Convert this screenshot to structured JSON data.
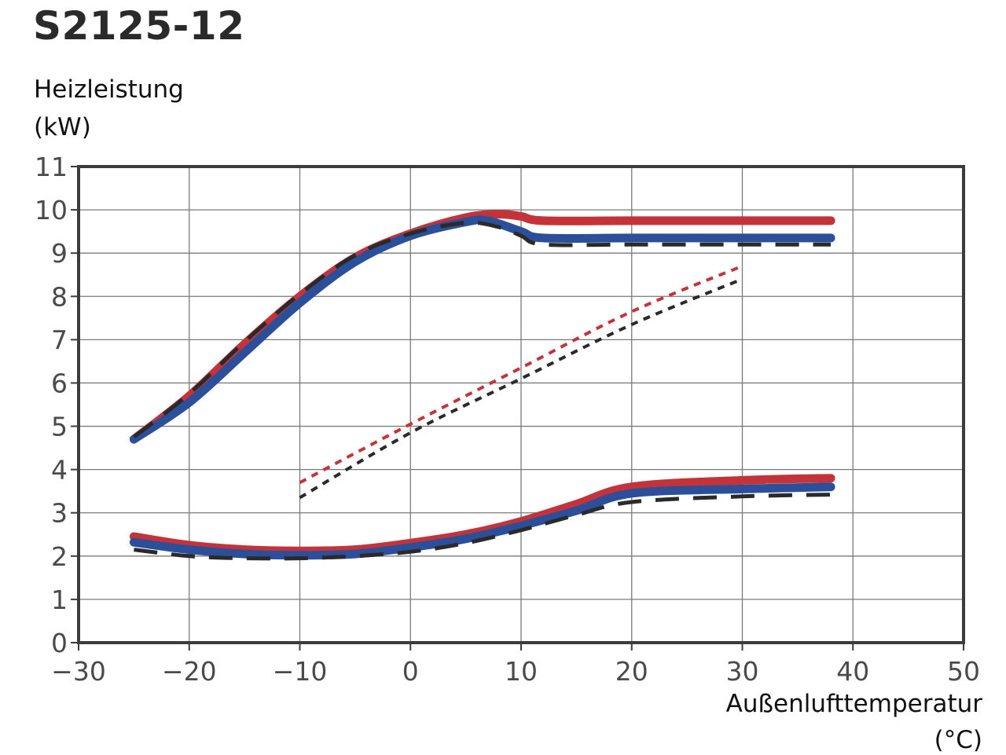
{
  "chart_data": {
    "type": "line",
    "title": "S2125-12",
    "ylabel": "Heizleistung",
    "ylabel_unit": "(kW)",
    "xlabel": "Außenlufttemperatur",
    "xlabel_unit": "(°C)",
    "xlim": [
      -30,
      50
    ],
    "ylim": [
      0,
      11
    ],
    "xticks": [
      -30,
      -20,
      -10,
      0,
      10,
      20,
      30,
      40,
      50
    ],
    "yticks": [
      0,
      1,
      2,
      3,
      4,
      5,
      6,
      7,
      8,
      9,
      10,
      11
    ],
    "grid": true,
    "legend": "none",
    "series": [
      {
        "group": "max",
        "color": "#c5333a",
        "style": "solid",
        "points": [
          [
            -25,
            4.7
          ],
          [
            -20,
            5.7
          ],
          [
            -15,
            6.9
          ],
          [
            -10,
            8.0
          ],
          [
            -5,
            8.9
          ],
          [
            0,
            9.45
          ],
          [
            5,
            9.82
          ],
          [
            8,
            9.9
          ],
          [
            10,
            9.85
          ],
          [
            12,
            9.75
          ],
          [
            20,
            9.75
          ],
          [
            30,
            9.75
          ],
          [
            38,
            9.75
          ]
        ]
      },
      {
        "group": "max",
        "color": "#2c4f9a",
        "style": "solid",
        "points": [
          [
            -25,
            4.7
          ],
          [
            -20,
            5.55
          ],
          [
            -15,
            6.7
          ],
          [
            -10,
            7.85
          ],
          [
            -5,
            8.8
          ],
          [
            0,
            9.4
          ],
          [
            5,
            9.72
          ],
          [
            7,
            9.75
          ],
          [
            10,
            9.5
          ],
          [
            12,
            9.35
          ],
          [
            20,
            9.35
          ],
          [
            30,
            9.35
          ],
          [
            38,
            9.35
          ]
        ]
      },
      {
        "group": "max",
        "color": "#2a2a2a",
        "style": "dashed",
        "points": [
          [
            -25,
            4.75
          ],
          [
            -20,
            5.75
          ],
          [
            -15,
            6.95
          ],
          [
            -10,
            8.05
          ],
          [
            -5,
            8.95
          ],
          [
            0,
            9.45
          ],
          [
            5,
            9.7
          ],
          [
            8,
            9.6
          ],
          [
            10,
            9.4
          ],
          [
            12,
            9.2
          ],
          [
            20,
            9.2
          ],
          [
            30,
            9.2
          ],
          [
            38,
            9.2
          ]
        ]
      },
      {
        "group": "min",
        "color": "#c5333a",
        "style": "solid",
        "points": [
          [
            -25,
            2.45
          ],
          [
            -20,
            2.25
          ],
          [
            -15,
            2.15
          ],
          [
            -10,
            2.12
          ],
          [
            -5,
            2.15
          ],
          [
            0,
            2.3
          ],
          [
            5,
            2.5
          ],
          [
            10,
            2.8
          ],
          [
            15,
            3.2
          ],
          [
            20,
            3.6
          ],
          [
            30,
            3.75
          ],
          [
            38,
            3.8
          ]
        ]
      },
      {
        "group": "min",
        "color": "#2c4f9a",
        "style": "solid",
        "points": [
          [
            -25,
            2.32
          ],
          [
            -20,
            2.15
          ],
          [
            -15,
            2.05
          ],
          [
            -10,
            2.02
          ],
          [
            -5,
            2.05
          ],
          [
            0,
            2.2
          ],
          [
            5,
            2.4
          ],
          [
            10,
            2.7
          ],
          [
            15,
            3.05
          ],
          [
            20,
            3.45
          ],
          [
            30,
            3.55
          ],
          [
            38,
            3.6
          ]
        ]
      },
      {
        "group": "min",
        "color": "#2a2a2a",
        "style": "dashed",
        "points": [
          [
            -25,
            2.15
          ],
          [
            -20,
            2.0
          ],
          [
            -15,
            1.95
          ],
          [
            -10,
            1.95
          ],
          [
            -5,
            2.0
          ],
          [
            0,
            2.1
          ],
          [
            5,
            2.3
          ],
          [
            10,
            2.6
          ],
          [
            15,
            2.95
          ],
          [
            20,
            3.25
          ],
          [
            30,
            3.38
          ],
          [
            38,
            3.42
          ]
        ]
      },
      {
        "group": "nominal",
        "color": "#c5333a",
        "style": "dotted",
        "points": [
          [
            -10,
            3.7
          ],
          [
            0,
            5.05
          ],
          [
            10,
            6.35
          ],
          [
            20,
            7.65
          ],
          [
            30,
            8.7
          ]
        ]
      },
      {
        "group": "nominal",
        "color": "#2a2a2a",
        "style": "dotted",
        "points": [
          [
            -10,
            3.35
          ],
          [
            0,
            4.85
          ],
          [
            10,
            6.1
          ],
          [
            20,
            7.35
          ],
          [
            30,
            8.4
          ]
        ]
      }
    ]
  }
}
